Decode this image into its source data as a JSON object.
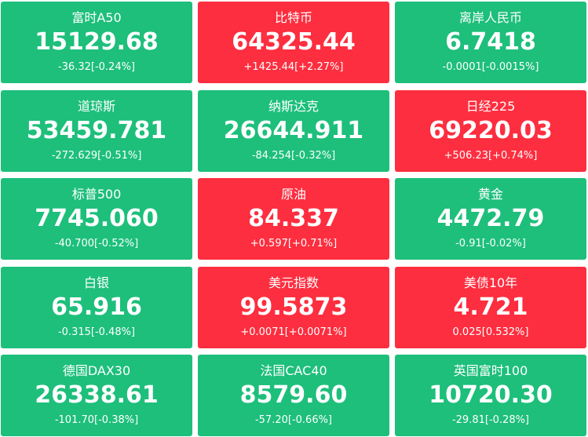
{
  "tiles": [
    {
      "name": "富时A50",
      "price": "15129.68",
      "change": "-36.32[-0.24%]",
      "color": "#1dbf7b"
    },
    {
      "name": "比特币",
      "price": "64325.44",
      "change": "+1425.44[+2.27%]",
      "color": "#fd2e3f"
    },
    {
      "name": "离岸人民币",
      "price": "6.7418",
      "change": "-0.0001[-0.0015%]",
      "color": "#1dbf7b"
    },
    {
      "name": "道琼斯",
      "price": "53459.781",
      "change": "-272.629[-0.51%]",
      "color": "#1dbf7b"
    },
    {
      "name": "纳斯达克",
      "price": "26644.911",
      "change": "-84.254[-0.32%]",
      "color": "#1dbf7b"
    },
    {
      "name": "日经225",
      "price": "69220.03",
      "change": "+506.23[+0.74%]",
      "color": "#fd2e3f"
    },
    {
      "name": "标普500",
      "price": "7745.060",
      "change": "-40.700[-0.52%]",
      "color": "#1dbf7b"
    },
    {
      "name": "原油",
      "price": "84.337",
      "change": "+0.597[+0.71%]",
      "color": "#fd2e3f"
    },
    {
      "name": "黄金",
      "price": "4472.79",
      "change": "-0.91[-0.02%]",
      "color": "#1dbf7b"
    },
    {
      "name": "白银",
      "price": "65.916",
      "change": "-0.315[-0.48%]",
      "color": "#1dbf7b"
    },
    {
      "name": "美元指数",
      "price": "99.5873",
      "change": "+0.0071[+0.0071%]",
      "color": "#fd2e3f"
    },
    {
      "name": "美债10年",
      "price": "4.721",
      "change": "0.025[0.532%]",
      "color": "#fd2e3f"
    },
    {
      "name": "德国DAX30",
      "price": "26338.61",
      "change": "-101.70[-0.38%]",
      "color": "#1dbf7b"
    },
    {
      "name": "法国CAC40",
      "price": "8579.60",
      "change": "-57.20[-0.66%]",
      "color": "#1dbf7b"
    },
    {
      "name": "英国富时100",
      "price": "10720.30",
      "change": "-29.81[-0.28%]",
      "color": "#1dbf7b"
    }
  ]
}
